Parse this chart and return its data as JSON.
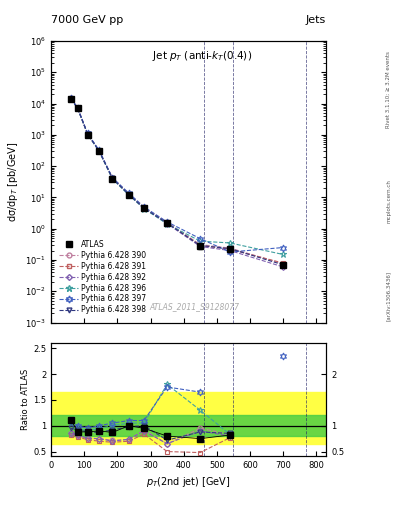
{
  "title_top": "7000 GeV pp",
  "title_right": "Jets",
  "annotation": "Jet $p_T$ (anti-$k_T$(0.4))",
  "watermark": "ATLAS_2011_S9128077",
  "rivet_label": "Rivet 3.1.10; ≥ 3.2M events",
  "arxiv_label": "[arXiv:1306.3436]",
  "mcplots_label": "mcplots.cern.ch",
  "xlabel": "$p_T$(2nd jet) [GeV]",
  "ylabel_main": "dσ/dp$_T$ [pb/GeV]",
  "ylabel_ratio": "Ratio to ATLAS",
  "xlim": [
    0,
    830
  ],
  "ylim_main_lo": 0.001,
  "ylim_main_hi": 1000000.0,
  "ylim_ratio_lo": 0.42,
  "ylim_ratio_hi": 2.6,
  "pt_centers": [
    60,
    80,
    110,
    145,
    185,
    235,
    280,
    350,
    450,
    540,
    700
  ],
  "atlas_y": [
    14000,
    7000,
    1000,
    300,
    40,
    12,
    4.5,
    1.5,
    0.28,
    0.22,
    0.07
  ],
  "atlas_yerr_lo": [
    1500,
    700,
    100,
    30,
    5,
    1.5,
    0.5,
    0.2,
    0.05,
    0.04,
    0.01
  ],
  "atlas_yerr_hi": [
    1500,
    700,
    100,
    30,
    5,
    1.5,
    0.5,
    0.2,
    0.05,
    0.04,
    0.01
  ],
  "py390_y": [
    14500,
    7200,
    1100,
    310,
    42,
    13,
    4.8,
    1.6,
    0.31,
    0.24,
    0.075
  ],
  "py391_y": [
    14200,
    7100,
    1050,
    305,
    41,
    12.5,
    4.6,
    1.55,
    0.29,
    0.22,
    0.08
  ],
  "py392_y": [
    14300,
    7100,
    1080,
    300,
    40,
    12,
    4.5,
    1.45,
    0.27,
    0.2,
    0.06
  ],
  "py396_y": [
    14100,
    7000,
    1050,
    295,
    39,
    11.8,
    4.4,
    1.42,
    0.4,
    0.35,
    0.15
  ],
  "py397_y": [
    14800,
    7300,
    1120,
    320,
    43,
    13.5,
    5.0,
    1.65,
    0.48,
    0.18,
    0.25
  ],
  "py398_y": [
    14200,
    7100,
    1070,
    302,
    40.5,
    12.2,
    4.55,
    1.5,
    0.29,
    0.23,
    0.07
  ],
  "ratio_atlas_y": [
    1.12,
    0.88,
    0.88,
    0.9,
    0.87,
    1.0,
    0.95,
    0.8,
    0.75,
    0.82,
    null
  ],
  "ratio_py390_y": [
    0.85,
    0.8,
    0.75,
    0.75,
    0.72,
    0.73,
    0.92,
    0.65,
    0.95,
    0.83,
    null
  ],
  "ratio_py391_y": [
    0.82,
    0.78,
    0.73,
    0.7,
    0.68,
    0.7,
    0.84,
    0.5,
    0.48,
    0.77,
    null
  ],
  "ratio_py392_y": [
    0.85,
    0.82,
    0.76,
    0.75,
    0.7,
    0.74,
    0.9,
    0.65,
    0.9,
    0.8,
    null
  ],
  "ratio_py396_y": [
    1.05,
    0.95,
    0.9,
    0.95,
    1.0,
    1.05,
    1.05,
    1.8,
    1.3,
    0.83,
    null
  ],
  "ratio_py397_y": [
    1.1,
    1.0,
    0.95,
    1.0,
    1.05,
    1.1,
    1.1,
    1.75,
    1.65,
    null,
    2.35
  ],
  "ratio_py398_y": [
    0.95,
    0.92,
    0.88,
    0.87,
    0.92,
    0.98,
    1.0,
    0.72,
    0.88,
    0.85,
    null
  ],
  "yellow_band_lo": 0.65,
  "yellow_band_hi": 1.65,
  "green_band_lo": 0.8,
  "green_band_hi": 1.2,
  "color_390": "#c080a0",
  "color_391": "#c06060",
  "color_392": "#8060b0",
  "color_396": "#40a0a0",
  "color_397": "#4060c0",
  "color_398": "#303880",
  "vlines_x": [
    460,
    550,
    770
  ],
  "bg_color": "#ffffff",
  "yellow_color": "#ffff44",
  "green_color": "#44cc44"
}
